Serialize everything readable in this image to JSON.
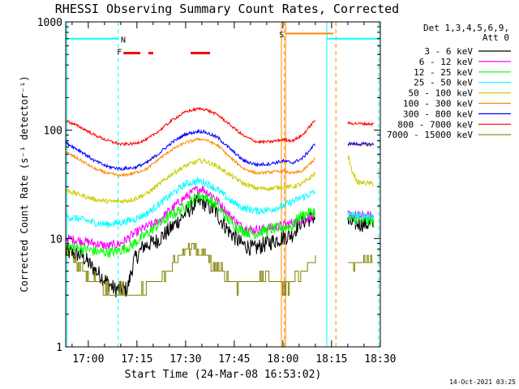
{
  "chart_data": {
    "type": "line",
    "title": "RHESSI Observing Summary Count Rates, Corrected",
    "xlabel": "Start Time (24-Mar-08 16:53:02)",
    "ylabel": "Corrected Count Rate (s⁻¹ detector⁻¹)",
    "yscale": "log",
    "ylim": [
      1,
      1000
    ],
    "xlim_minutes_from_start": [
      0,
      97
    ],
    "x_ticks": [
      {
        "label": "17:00",
        "min": 6.97
      },
      {
        "label": "17:15",
        "min": 21.97
      },
      {
        "label": "17:30",
        "min": 36.97
      },
      {
        "label": "17:45",
        "min": 51.97
      },
      {
        "label": "18:00",
        "min": 66.97
      },
      {
        "label": "18:15",
        "min": 81.97
      },
      {
        "label": "18:30",
        "min": 96.97
      }
    ],
    "y_ticks": [
      {
        "label": "1",
        "value": 1
      },
      {
        "label": "10",
        "value": 10
      },
      {
        "label": "100",
        "value": 100
      },
      {
        "label": "1000",
        "value": 1000
      }
    ],
    "legend_header": [
      "Det 1,3,4,5,6,9,",
      "Att 0"
    ],
    "legend_placement": "right",
    "footer_date": "14-Oct-2021 03:25",
    "series": [
      {
        "name": "3 - 6 keV",
        "color": "#000000",
        "keys": [
          [
            0,
            7.5
          ],
          [
            5,
            7
          ],
          [
            8,
            5.5
          ],
          [
            12,
            4.2
          ],
          [
            15,
            3.4
          ],
          [
            19,
            3.4
          ],
          [
            21,
            6.2
          ],
          [
            24,
            8.5
          ],
          [
            28,
            9.5
          ],
          [
            32,
            12
          ],
          [
            36,
            16
          ],
          [
            40,
            21
          ],
          [
            42,
            22
          ],
          [
            46,
            18
          ],
          [
            50,
            12
          ],
          [
            54,
            9
          ],
          [
            58,
            8
          ],
          [
            62,
            9
          ],
          [
            66,
            10
          ],
          [
            70,
            11
          ],
          [
            72,
            14
          ],
          [
            77,
            16
          ]
        ],
        "after": [
          [
            87,
            14
          ],
          [
            95,
            13.5
          ]
        ],
        "noise": 0.18
      },
      {
        "name": "6 - 12 keV",
        "color": "#ff00ff",
        "keys": [
          [
            0,
            10
          ],
          [
            5,
            9.5
          ],
          [
            9,
            9
          ],
          [
            13,
            8.5
          ],
          [
            17,
            9
          ],
          [
            20,
            10.5
          ],
          [
            24,
            12.5
          ],
          [
            28,
            14
          ],
          [
            32,
            18
          ],
          [
            36,
            23
          ],
          [
            40,
            28
          ],
          [
            42,
            29
          ],
          [
            46,
            24
          ],
          [
            50,
            17
          ],
          [
            54,
            13
          ],
          [
            58,
            12
          ],
          [
            62,
            12.5
          ],
          [
            66,
            13
          ],
          [
            70,
            14
          ],
          [
            72,
            15
          ],
          [
            77,
            16
          ]
        ],
        "after": [
          [
            87,
            16.5
          ],
          [
            95,
            16
          ]
        ],
        "noise": 0.1
      },
      {
        "name": "12 - 25 keV",
        "color": "#00ff00",
        "keys": [
          [
            0,
            8.5
          ],
          [
            6,
            8
          ],
          [
            10,
            7.5
          ],
          [
            15,
            7.5
          ],
          [
            20,
            8.5
          ],
          [
            24,
            10.5
          ],
          [
            28,
            13
          ],
          [
            32,
            16
          ],
          [
            36,
            19
          ],
          [
            40,
            24
          ],
          [
            42,
            25
          ],
          [
            46,
            21
          ],
          [
            50,
            15
          ],
          [
            54,
            12
          ],
          [
            58,
            11
          ],
          [
            62,
            12
          ],
          [
            66,
            12.5
          ],
          [
            70,
            13
          ],
          [
            72,
            16
          ],
          [
            77,
            18
          ]
        ],
        "after": [
          [
            87,
            15
          ],
          [
            95,
            14.5
          ]
        ],
        "noise": 0.12
      },
      {
        "name": "25 - 50 keV",
        "color": "#00ffff",
        "keys": [
          [
            0,
            16
          ],
          [
            5,
            15
          ],
          [
            9,
            14
          ],
          [
            13,
            13.5
          ],
          [
            17,
            14
          ],
          [
            21,
            15
          ],
          [
            25,
            17
          ],
          [
            29,
            21
          ],
          [
            33,
            26
          ],
          [
            37,
            32
          ],
          [
            41,
            34
          ],
          [
            43,
            33
          ],
          [
            47,
            28
          ],
          [
            51,
            22
          ],
          [
            55,
            19
          ],
          [
            59,
            18
          ],
          [
            63,
            18.5
          ],
          [
            67,
            20
          ],
          [
            70,
            22
          ],
          [
            73,
            24
          ],
          [
            77,
            27
          ]
        ],
        "after": [
          [
            87,
            16.5
          ],
          [
            95,
            16
          ]
        ],
        "noise": 0.08
      },
      {
        "name": "50 - 100 keV",
        "color": "#cccc00",
        "keys": [
          [
            0,
            28
          ],
          [
            5,
            25
          ],
          [
            9,
            23
          ],
          [
            13,
            22
          ],
          [
            17,
            22
          ],
          [
            21,
            23
          ],
          [
            25,
            26
          ],
          [
            29,
            32
          ],
          [
            33,
            40
          ],
          [
            37,
            47
          ],
          [
            41,
            52
          ],
          [
            43,
            52
          ],
          [
            47,
            46
          ],
          [
            51,
            38
          ],
          [
            55,
            32
          ],
          [
            59,
            29
          ],
          [
            63,
            29
          ],
          [
            67,
            30
          ],
          [
            70,
            30
          ],
          [
            73,
            32
          ],
          [
            77,
            40
          ]
        ],
        "after": [
          [
            87,
            60
          ],
          [
            88,
            44
          ],
          [
            90,
            33
          ],
          [
            95,
            32
          ]
        ],
        "noise": 0.05
      },
      {
        "name": "100 - 300 keV",
        "color": "#ff8800",
        "keys": [
          [
            0,
            63
          ],
          [
            5,
            52
          ],
          [
            9,
            44
          ],
          [
            13,
            40
          ],
          [
            17,
            38
          ],
          [
            21,
            40
          ],
          [
            25,
            44
          ],
          [
            29,
            55
          ],
          [
            33,
            67
          ],
          [
            37,
            77
          ],
          [
            41,
            83
          ],
          [
            43,
            82
          ],
          [
            47,
            72
          ],
          [
            51,
            55
          ],
          [
            55,
            44
          ],
          [
            59,
            40
          ],
          [
            63,
            41
          ],
          [
            67,
            42
          ],
          [
            70,
            40
          ],
          [
            73,
            42
          ],
          [
            77,
            55
          ]
        ],
        "after": [
          [
            87,
            74
          ],
          [
            95,
            74
          ]
        ],
        "noise": 0.03
      },
      {
        "name": "300 - 800 keV",
        "color": "#0000ff",
        "keys": [
          [
            0,
            77
          ],
          [
            5,
            63
          ],
          [
            9,
            52
          ],
          [
            13,
            46
          ],
          [
            17,
            44
          ],
          [
            21,
            45
          ],
          [
            25,
            50
          ],
          [
            29,
            62
          ],
          [
            33,
            78
          ],
          [
            37,
            92
          ],
          [
            41,
            98
          ],
          [
            43,
            96
          ],
          [
            47,
            85
          ],
          [
            51,
            66
          ],
          [
            55,
            52
          ],
          [
            59,
            48
          ],
          [
            63,
            49
          ],
          [
            67,
            52
          ],
          [
            70,
            50
          ],
          [
            73,
            55
          ],
          [
            77,
            75
          ]
        ],
        "after": [
          [
            87,
            75
          ],
          [
            95,
            74
          ]
        ],
        "noise": 0.035
      },
      {
        "name": "800 - 7000 keV",
        "color": "#ff0000",
        "keys": [
          [
            0,
            123
          ],
          [
            5,
            105
          ],
          [
            9,
            90
          ],
          [
            13,
            80
          ],
          [
            17,
            74
          ],
          [
            21,
            75
          ],
          [
            25,
            82
          ],
          [
            29,
            100
          ],
          [
            33,
            125
          ],
          [
            37,
            148
          ],
          [
            41,
            158
          ],
          [
            43,
            156
          ],
          [
            47,
            138
          ],
          [
            51,
            110
          ],
          [
            55,
            88
          ],
          [
            59,
            78
          ],
          [
            63,
            78
          ],
          [
            67,
            82
          ],
          [
            70,
            80
          ],
          [
            73,
            90
          ],
          [
            77,
            125
          ]
        ],
        "after": [
          [
            87,
            116
          ],
          [
            95,
            114
          ]
        ],
        "noise": 0.03
      },
      {
        "name": "7000 - 15000 keV",
        "color": "#808000",
        "keys": [
          [
            0,
            7.5
          ],
          [
            2,
            7
          ],
          [
            4,
            5.5
          ],
          [
            7,
            4.5
          ],
          [
            10,
            4
          ],
          [
            13,
            3.5
          ],
          [
            16,
            3.5
          ],
          [
            19,
            3
          ],
          [
            22,
            3
          ],
          [
            24,
            3.5
          ],
          [
            27,
            4
          ],
          [
            30,
            4.5
          ],
          [
            33,
            6
          ],
          [
            36,
            7.5
          ],
          [
            39,
            8
          ],
          [
            42,
            7.5
          ],
          [
            45,
            6
          ],
          [
            48,
            5
          ],
          [
            51,
            4
          ],
          [
            54,
            3.5
          ],
          [
            56,
            4
          ],
          [
            59,
            4
          ],
          [
            62,
            4.5
          ],
          [
            66,
            3.5
          ],
          [
            70,
            4
          ],
          [
            73,
            5
          ],
          [
            77,
            6
          ]
        ],
        "after": [
          [
            87,
            6
          ],
          [
            95,
            6.5
          ]
        ],
        "noise": 0.12
      }
    ],
    "annotations": {
      "flag_labels": [
        "N",
        "F",
        "S"
      ],
      "vertical_lines_cyan_solid_min": [
        0.4,
        80.5
      ],
      "vertical_lines_cyan_dashed_min": [
        16.2,
        96.5
      ],
      "vertical_lines_orange_solid_min": [
        66.5,
        67.8
      ],
      "vertical_lines_orange_dashed_min": [
        67.4,
        83.3
      ],
      "segments": [
        {
          "label": "N",
          "color": "#00ffff",
          "y": 700,
          "from_min": 0,
          "to_min": 16.2
        },
        {
          "label": "N",
          "color": "#00ffff",
          "y": 700,
          "from_min": 80.5,
          "to_min": 96.5
        },
        {
          "label": "F",
          "color": "#ff0000",
          "y": 515,
          "from_min": 17.8,
          "to_min": 23.0
        },
        {
          "label": "F",
          "color": "#ff0000",
          "y": 515,
          "from_min": 25.5,
          "to_min": 27.0
        },
        {
          "label": "F",
          "color": "#ff0000",
          "y": 515,
          "from_min": 38.5,
          "to_min": 44.5
        },
        {
          "label": "S",
          "color": "#ff8800",
          "y": 780,
          "from_min": 67.8,
          "to_min": 82.5
        }
      ]
    }
  }
}
